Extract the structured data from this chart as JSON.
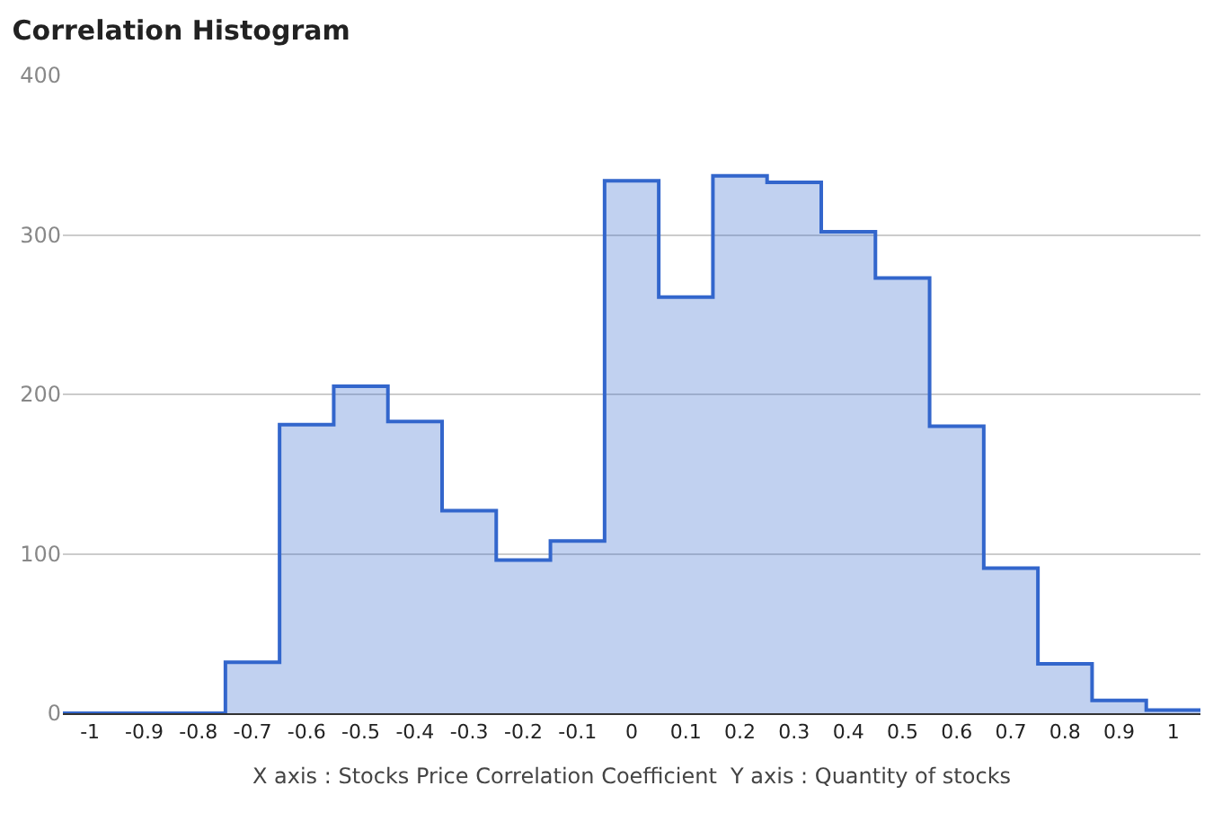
{
  "chart_data": {
    "type": "histogram",
    "title": "Correlation Histogram",
    "xlabel": "X axis : Stocks Price Correlation Coefficient  Y axis : Quantity of stocks",
    "bins": [
      -1.05,
      -0.95,
      -0.85,
      -0.75,
      -0.65,
      -0.55,
      -0.45,
      -0.35,
      -0.25,
      -0.15,
      -0.05,
      0.05,
      0.15,
      0.25,
      0.35,
      0.45,
      0.55,
      0.65,
      0.75,
      0.85,
      0.95,
      1.05
    ],
    "values": [
      0,
      0,
      0,
      32,
      181,
      205,
      183,
      127,
      96,
      108,
      334,
      261,
      337,
      333,
      302,
      273,
      180,
      91,
      31,
      8,
      2
    ],
    "color": "#3366cc",
    "xlim": [
      -1.05,
      1.05
    ],
    "xticks": [
      -1,
      -0.9,
      -0.8,
      -0.7,
      -0.6,
      -0.5,
      -0.4,
      -0.3,
      -0.2,
      -0.1,
      0,
      0.1,
      0.2,
      0.3,
      0.4,
      0.5,
      0.6,
      0.7,
      0.8,
      0.9,
      1
    ],
    "ylim": [
      0,
      400
    ],
    "yticks": [
      0,
      100,
      200,
      300,
      400
    ],
    "grid": "y",
    "legend": false
  }
}
